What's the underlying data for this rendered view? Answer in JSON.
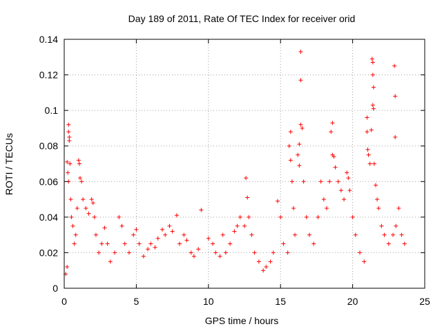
{
  "chart_data": {
    "type": "scatter",
    "title": "Day 189 of 2011, Rate Of TEC Index for receiver orid",
    "xlabel": "GPS time / hours",
    "ylabel": "ROTI / TECUs",
    "xlim": [
      0,
      25
    ],
    "ylim": [
      0,
      0.14
    ],
    "x_ticks": [
      "0",
      "5",
      "10",
      "15",
      "20",
      "25"
    ],
    "y_ticks": [
      "0",
      "0.02",
      "0.04",
      "0.06",
      "0.08",
      "0.1",
      "0.12",
      "0.14"
    ],
    "grid": true,
    "marker": "+",
    "color": "#ff0000",
    "series": [
      {
        "points": [
          [
            0.1,
            0.008
          ],
          [
            0.2,
            0.012
          ],
          [
            0.25,
            0.065
          ],
          [
            0.3,
            0.092
          ],
          [
            0.3,
            0.088
          ],
          [
            0.35,
            0.083
          ],
          [
            0.35,
            0.085
          ],
          [
            0.4,
            0.07
          ],
          [
            0.2,
            0.071
          ],
          [
            0.3,
            0.06
          ],
          [
            0.45,
            0.05
          ],
          [
            0.5,
            0.04
          ],
          [
            0.6,
            0.035
          ],
          [
            0.7,
            0.025
          ],
          [
            0.8,
            0.03
          ],
          [
            0.9,
            0.045
          ],
          [
            1.0,
            0.072
          ],
          [
            1.05,
            0.07
          ],
          [
            1.1,
            0.062
          ],
          [
            1.2,
            0.06
          ],
          [
            1.3,
            0.05
          ],
          [
            1.5,
            0.045
          ],
          [
            1.7,
            0.042
          ],
          [
            1.9,
            0.05
          ],
          [
            2.0,
            0.048
          ],
          [
            2.1,
            0.04
          ],
          [
            2.2,
            0.03
          ],
          [
            2.4,
            0.02
          ],
          [
            2.6,
            0.025
          ],
          [
            2.8,
            0.034
          ],
          [
            3.0,
            0.025
          ],
          [
            3.2,
            0.015
          ],
          [
            3.5,
            0.02
          ],
          [
            3.8,
            0.04
          ],
          [
            4.0,
            0.035
          ],
          [
            4.2,
            0.025
          ],
          [
            4.5,
            0.02
          ],
          [
            4.8,
            0.03
          ],
          [
            5.0,
            0.033
          ],
          [
            5.2,
            0.025
          ],
          [
            5.5,
            0.018
          ],
          [
            5.8,
            0.022
          ],
          [
            6.0,
            0.025
          ],
          [
            6.3,
            0.023
          ],
          [
            6.5,
            0.028
          ],
          [
            6.8,
            0.033
          ],
          [
            7.0,
            0.03
          ],
          [
            7.3,
            0.035
          ],
          [
            7.5,
            0.032
          ],
          [
            7.8,
            0.041
          ],
          [
            8.0,
            0.025
          ],
          [
            8.3,
            0.03
          ],
          [
            8.5,
            0.027
          ],
          [
            8.8,
            0.02
          ],
          [
            9.0,
            0.018
          ],
          [
            9.3,
            0.022
          ],
          [
            9.5,
            0.044
          ],
          [
            10.0,
            0.028
          ],
          [
            10.3,
            0.025
          ],
          [
            10.5,
            0.02
          ],
          [
            10.8,
            0.018
          ],
          [
            11.0,
            0.03
          ],
          [
            11.2,
            0.02
          ],
          [
            11.5,
            0.025
          ],
          [
            11.8,
            0.032
          ],
          [
            12.0,
            0.035
          ],
          [
            12.2,
            0.04
          ],
          [
            12.5,
            0.035
          ],
          [
            12.6,
            0.062
          ],
          [
            12.7,
            0.051
          ],
          [
            12.8,
            0.04
          ],
          [
            13.0,
            0.03
          ],
          [
            13.2,
            0.02
          ],
          [
            13.5,
            0.015
          ],
          [
            13.8,
            0.01
          ],
          [
            14.0,
            0.012
          ],
          [
            14.3,
            0.015
          ],
          [
            14.5,
            0.02
          ],
          [
            14.8,
            0.049
          ],
          [
            15.0,
            0.04
          ],
          [
            15.2,
            0.025
          ],
          [
            15.5,
            0.02
          ],
          [
            15.6,
            0.08
          ],
          [
            15.7,
            0.088
          ],
          [
            15.7,
            0.072
          ],
          [
            15.8,
            0.06
          ],
          [
            15.9,
            0.045
          ],
          [
            16.0,
            0.03
          ],
          [
            16.2,
            0.075
          ],
          [
            16.3,
            0.081
          ],
          [
            16.3,
            0.069
          ],
          [
            16.4,
            0.133
          ],
          [
            16.4,
            0.117
          ],
          [
            16.4,
            0.092
          ],
          [
            16.5,
            0.09
          ],
          [
            16.6,
            0.06
          ],
          [
            16.8,
            0.04
          ],
          [
            17.0,
            0.03
          ],
          [
            17.3,
            0.025
          ],
          [
            17.6,
            0.04
          ],
          [
            17.8,
            0.06
          ],
          [
            18.0,
            0.05
          ],
          [
            18.2,
            0.045
          ],
          [
            18.4,
            0.06
          ],
          [
            18.5,
            0.088
          ],
          [
            18.6,
            0.093
          ],
          [
            18.6,
            0.075
          ],
          [
            18.7,
            0.074
          ],
          [
            18.8,
            0.068
          ],
          [
            19.0,
            0.06
          ],
          [
            19.2,
            0.055
          ],
          [
            19.4,
            0.05
          ],
          [
            19.6,
            0.065
          ],
          [
            19.7,
            0.062
          ],
          [
            19.8,
            0.055
          ],
          [
            20.0,
            0.04
          ],
          [
            20.2,
            0.03
          ],
          [
            20.5,
            0.02
          ],
          [
            20.8,
            0.015
          ],
          [
            21.0,
            0.088
          ],
          [
            21.0,
            0.096
          ],
          [
            21.05,
            0.078
          ],
          [
            21.1,
            0.075
          ],
          [
            21.2,
            0.07
          ],
          [
            21.3,
            0.089
          ],
          [
            21.35,
            0.129
          ],
          [
            21.4,
            0.127
          ],
          [
            21.4,
            0.12
          ],
          [
            21.45,
            0.113
          ],
          [
            21.4,
            0.103
          ],
          [
            21.45,
            0.101
          ],
          [
            21.5,
            0.07
          ],
          [
            21.6,
            0.058
          ],
          [
            21.7,
            0.05
          ],
          [
            21.8,
            0.045
          ],
          [
            22.0,
            0.035
          ],
          [
            22.2,
            0.03
          ],
          [
            22.5,
            0.025
          ],
          [
            22.8,
            0.03
          ],
          [
            22.9,
            0.125
          ],
          [
            22.95,
            0.108
          ],
          [
            22.95,
            0.085
          ],
          [
            23.0,
            0.035
          ],
          [
            23.2,
            0.045
          ],
          [
            23.4,
            0.03
          ],
          [
            23.6,
            0.025
          ]
        ]
      }
    ]
  }
}
